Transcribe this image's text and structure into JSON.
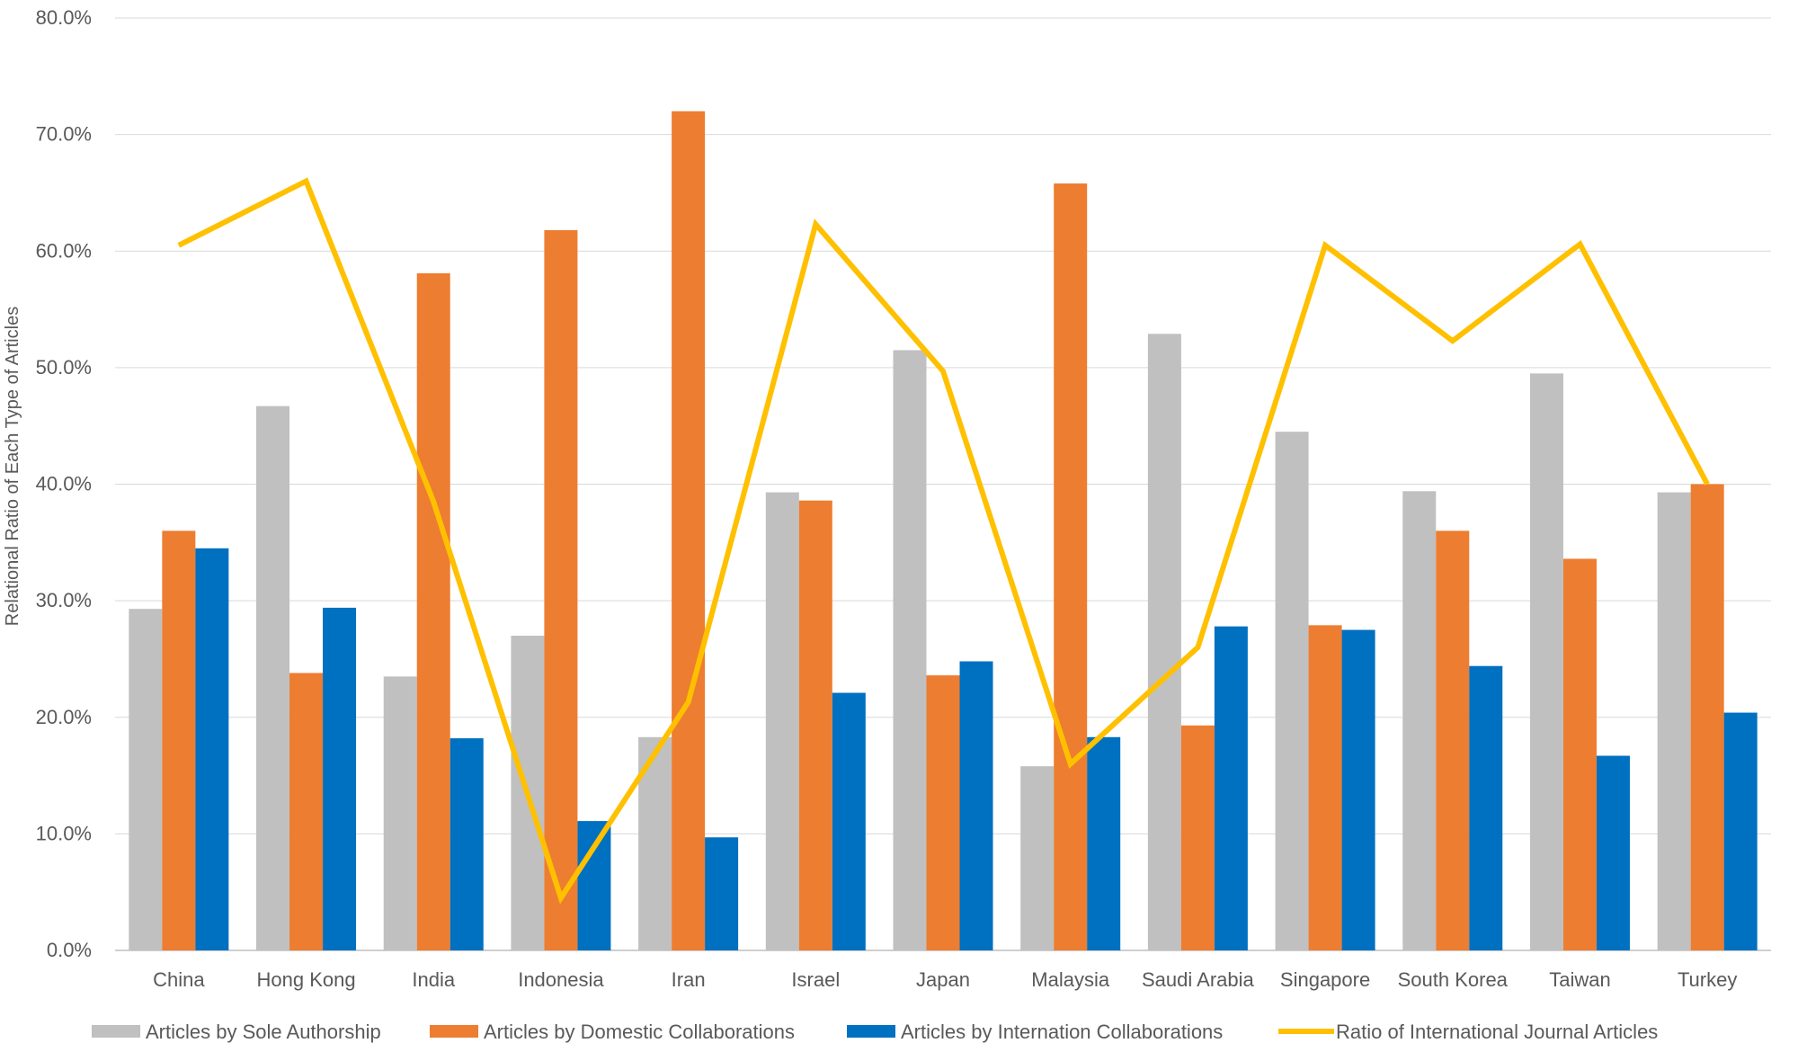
{
  "chart_data": {
    "type": "bar",
    "title": "",
    "xlabel": "",
    "ylabel": "Relational Ratio of Each Type of Articles",
    "ylim": [
      0,
      80
    ],
    "y_tick_labels": [
      "0.0%",
      "10.0%",
      "20.0%",
      "30.0%",
      "40.0%",
      "50.0%",
      "60.0%",
      "70.0%",
      "80.0%"
    ],
    "grid": true,
    "legend_position": "bottom",
    "categories": [
      "China",
      "Hong Kong",
      "India",
      "Indonesia",
      "Iran",
      "Israel",
      "Japan",
      "Malaysia",
      "Saudi Arabia",
      "Singapore",
      "South Korea",
      "Taiwan",
      "Turkey"
    ],
    "series": [
      {
        "name": "Articles by Sole Authorship",
        "type": "bar",
        "color": "#c0c0c0",
        "values": [
          29.3,
          46.7,
          23.5,
          27.0,
          18.3,
          39.3,
          51.5,
          15.8,
          52.9,
          44.5,
          39.4,
          49.5,
          39.3
        ]
      },
      {
        "name": "Articles by Domestic Collaborations",
        "type": "bar",
        "color": "#ed7d31",
        "values": [
          36.0,
          23.8,
          58.1,
          61.8,
          72.0,
          38.6,
          23.6,
          65.8,
          19.3,
          27.9,
          36.0,
          33.6,
          40.0
        ]
      },
      {
        "name": "Articles by Internation Collaborations",
        "type": "bar",
        "color": "#0070c0",
        "values": [
          34.5,
          29.4,
          18.2,
          11.1,
          9.7,
          22.1,
          24.8,
          18.3,
          27.8,
          27.5,
          24.4,
          16.7,
          20.4
        ]
      },
      {
        "name": "Ratio of International Journal Articles",
        "type": "line",
        "color": "#ffc000",
        "values": [
          60.5,
          66.0,
          38.5,
          4.5,
          21.3,
          62.3,
          49.7,
          16.0,
          26.0,
          60.5,
          52.3,
          60.6,
          40.0
        ]
      }
    ]
  }
}
